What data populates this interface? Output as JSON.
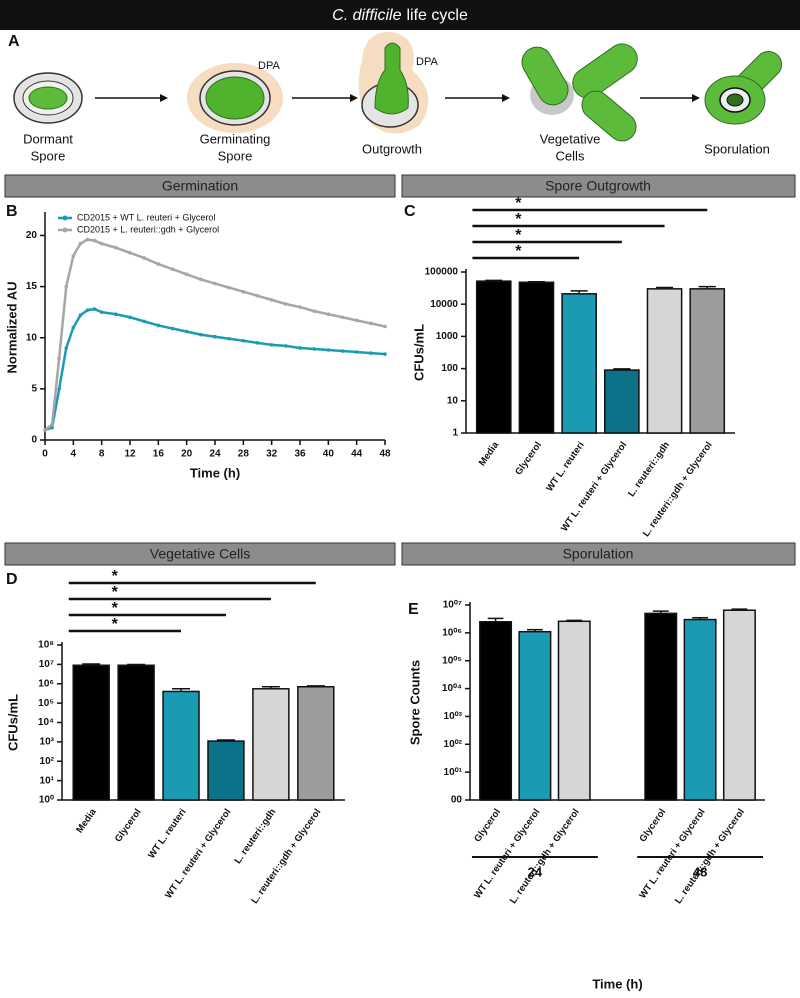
{
  "header": {
    "title_italic": "C. difficile",
    "title_rest": "life cycle"
  },
  "panel_a": {
    "panel": "A",
    "stages": [
      [
        "Dormant",
        "Spore"
      ],
      [
        "Germinating",
        "Spore"
      ],
      [
        "Outgrowth"
      ],
      [
        "Vegetative",
        "Cells"
      ],
      [
        "Sporulation"
      ]
    ],
    "dpa_labels": [
      "DPA",
      "DPA"
    ]
  },
  "sections": [
    "Germination",
    "Spore Outgrowth",
    "Vegetative Cells",
    "Sporulation"
  ],
  "chart_data": [
    {
      "type": "line",
      "panel": "B",
      "x_label": "Time (h)",
      "y_label": "Normalized AU",
      "x": [
        0,
        1,
        2,
        3,
        4,
        5,
        6,
        7,
        8,
        10,
        12,
        14,
        16,
        18,
        20,
        22,
        24,
        26,
        28,
        30,
        32,
        34,
        36,
        38,
        40,
        42,
        44,
        46,
        48
      ],
      "series": [
        {
          "name": "CD2015 + WT  L. reuteri + Glycerol",
          "color": "#1b9bb3",
          "values": [
            1,
            1.2,
            5,
            9,
            11,
            12.2,
            12.7,
            12.8,
            12.5,
            12.3,
            12.0,
            11.6,
            11.2,
            10.9,
            10.6,
            10.3,
            10.1,
            9.9,
            9.7,
            9.5,
            9.3,
            9.2,
            9.0,
            8.9,
            8.8,
            8.7,
            8.6,
            8.5,
            8.4
          ]
        },
        {
          "name": "CD2015 + L. reuteri::gdh + Glycerol",
          "color": "#a6a6a6",
          "values": [
            1,
            1.5,
            8,
            15,
            18,
            19.2,
            19.6,
            19.5,
            19.2,
            18.8,
            18.3,
            17.8,
            17.2,
            16.7,
            16.2,
            15.7,
            15.3,
            14.9,
            14.5,
            14.1,
            13.7,
            13.3,
            13.0,
            12.6,
            12.3,
            12.0,
            11.7,
            11.4,
            11.1
          ]
        }
      ],
      "xlim": [
        0,
        48
      ],
      "xticks": [
        0,
        4,
        8,
        12,
        16,
        20,
        24,
        28,
        32,
        36,
        40,
        44,
        48
      ],
      "ylim": [
        0,
        22
      ],
      "yticks": [
        0,
        5,
        10,
        15,
        20
      ]
    },
    {
      "type": "bar",
      "panel": "C",
      "y_label": "CFUs/mL",
      "log": true,
      "categories": [
        "Media",
        "Glycerol",
        "WT L. reuteri",
        "WT L. reuteri + Glycerol",
        "L. reuteri::gdh",
        "L. reuteri::gdh + Glycerol"
      ],
      "values": [
        52000,
        48000,
        21000,
        90,
        30000,
        30000
      ],
      "errors": [
        3000,
        2000,
        5000,
        8,
        3000,
        5000
      ],
      "colors": [
        "#000000",
        "#000000",
        "#1b9bb3",
        "#0b7289",
        "#d6d6d6",
        "#9c9c9c"
      ],
      "ylim": [
        1,
        100000
      ],
      "yticks": [
        1,
        10,
        100,
        1000,
        10000,
        100000
      ],
      "significance": [
        {
          "label": "*",
          "from": 0,
          "to": 2
        },
        {
          "label": "*",
          "from": 0,
          "to": 3
        },
        {
          "label": "*",
          "from": 0,
          "to": 4
        },
        {
          "label": "*",
          "from": 0,
          "to": 5
        }
      ]
    },
    {
      "type": "bar",
      "panel": "D",
      "y_label": "CFUs/mL",
      "log": true,
      "categories": [
        "Media",
        "Glycerol",
        "WT L. reuteri",
        "WT L. reuteri + Glycerol",
        "L. reuteri::gdh",
        "L. reuteri::gdh + Glycerol"
      ],
      "values": [
        9000000,
        9000000,
        400000,
        1100,
        550000,
        700000
      ],
      "errors": [
        1500000,
        800000,
        150000,
        150,
        150000,
        80000
      ],
      "colors": [
        "#000000",
        "#000000",
        "#1b9bb3",
        "#0b7289",
        "#d6d6d6",
        "#9c9c9c"
      ],
      "ylim": [
        1,
        100000000
      ],
      "yticks": [
        {
          "value": 1,
          "label": "10⁰"
        },
        {
          "value": 10,
          "label": "10¹"
        },
        {
          "value": 100,
          "label": "10²"
        },
        {
          "value": 1000,
          "label": "10³"
        },
        {
          "value": 10000,
          "label": "10⁴"
        },
        {
          "value": 100000,
          "label": "10⁵"
        },
        {
          "value": 1000000,
          "label": "10⁶"
        },
        {
          "value": 10000000,
          "label": "10⁷"
        },
        {
          "value": 100000000,
          "label": "10⁸"
        }
      ],
      "significance": [
        {
          "label": "*",
          "from": 0,
          "to": 2
        },
        {
          "label": "*",
          "from": 0,
          "to": 3
        },
        {
          "label": "*",
          "from": 0,
          "to": 4
        },
        {
          "label": "*",
          "from": 0,
          "to": 5
        }
      ]
    },
    {
      "type": "bar",
      "panel": "E",
      "y_label": "Spore Counts",
      "x_label": "Time (h)",
      "log": true,
      "categories": [
        "Glycerol",
        "WT L. reuteri + Glycerol",
        "L. reuteri::gdh + Glycerol",
        "Glycerol",
        "WT L. reuteri + Glycerol",
        "L. reuteri::gdh + Glycerol"
      ],
      "group_labels": [
        "24",
        "48"
      ],
      "values": [
        2500000,
        1100000,
        2600000,
        5000000,
        3000000,
        6500000
      ],
      "errors": [
        800000,
        200000,
        200000,
        1000000,
        500000,
        600000
      ],
      "colors": [
        "#000000",
        "#1b9bb3",
        "#d6d6d6",
        "#000000",
        "#1b9bb3",
        "#d6d6d6"
      ],
      "ylim": [
        1,
        10000000
      ],
      "yticks": [
        {
          "value": 1,
          "label": "00"
        },
        {
          "value": 10,
          "label": "10⁰¹"
        },
        {
          "value": 100,
          "label": "10⁰²"
        },
        {
          "value": 1000,
          "label": "10⁰³"
        },
        {
          "value": 10000,
          "label": "10⁰⁴"
        },
        {
          "value": 100000,
          "label": "10⁰⁵"
        },
        {
          "value": 1000000,
          "label": "10⁰⁶"
        },
        {
          "value": 10000000,
          "label": "10⁰⁷"
        }
      ]
    }
  ]
}
